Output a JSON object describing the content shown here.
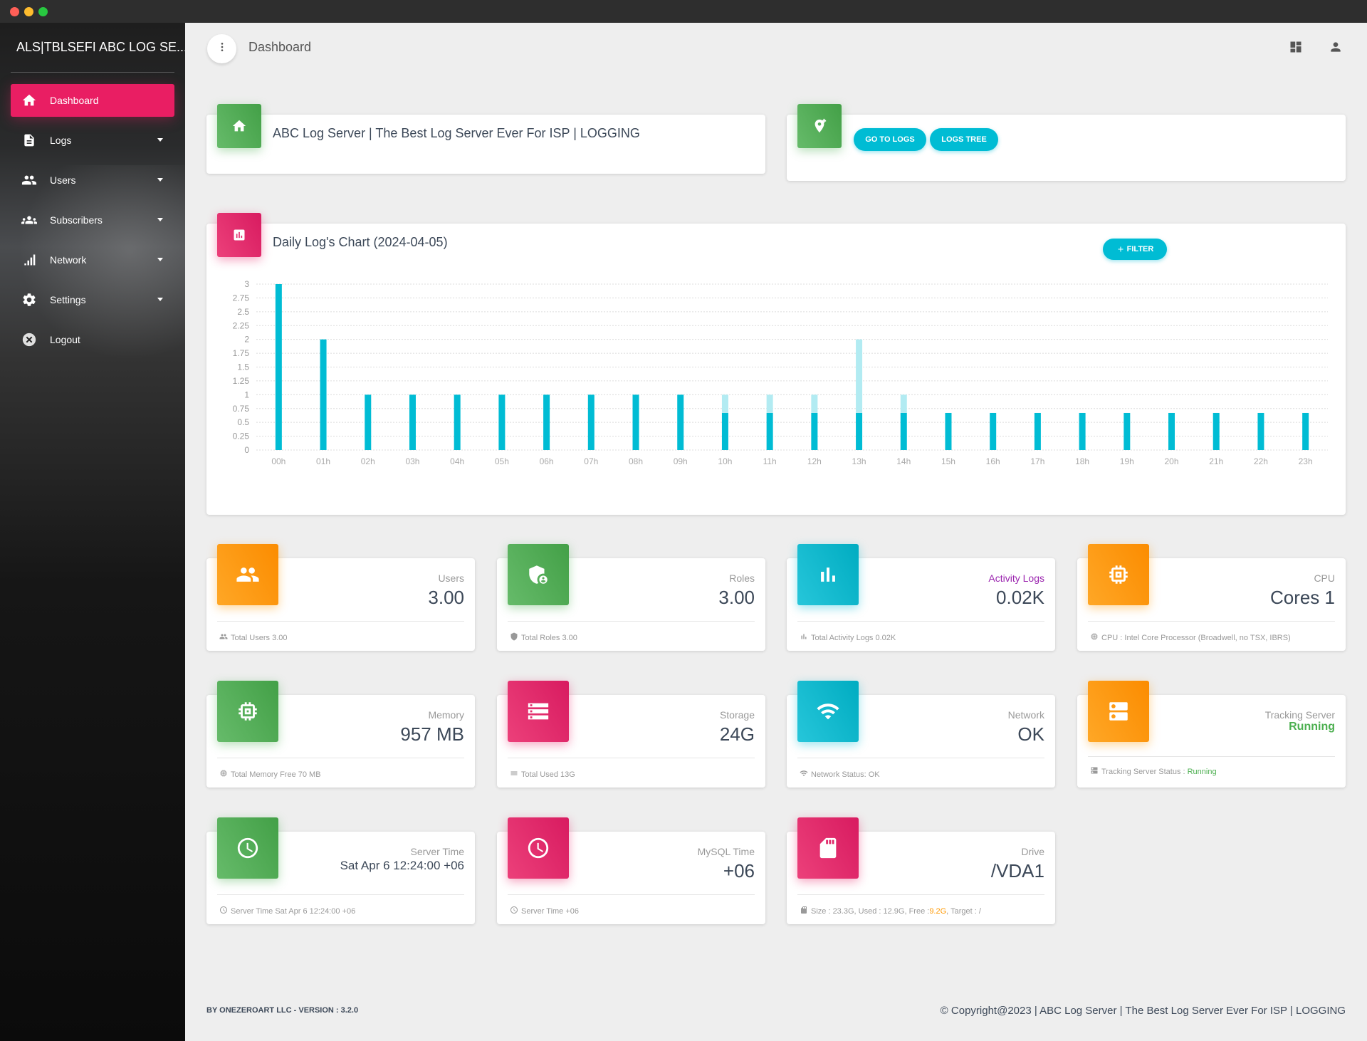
{
  "window": {
    "controls": [
      "close",
      "minimize",
      "maximize"
    ]
  },
  "sidebar": {
    "brand_mini": "ALS|TBLSEFI",
    "brand_full": "ABC LOG SE...",
    "items": [
      {
        "label": "Dashboard",
        "icon": "home-icon",
        "active": true
      },
      {
        "label": "Logs",
        "icon": "document-icon",
        "expandable": true
      },
      {
        "label": "Users",
        "icon": "users-icon",
        "expandable": true
      },
      {
        "label": "Subscribers",
        "icon": "group-icon",
        "expandable": true
      },
      {
        "label": "Network",
        "icon": "signal-icon",
        "expandable": true
      },
      {
        "label": "Settings",
        "icon": "gear-icon",
        "expandable": true
      },
      {
        "label": "Logout",
        "icon": "close-circle-icon"
      }
    ]
  },
  "topbar": {
    "title": "Dashboard",
    "icons": [
      "more-vert-icon",
      "dashboard-grid-icon",
      "person-icon"
    ]
  },
  "header_card": {
    "title": "ABC Log Server | The Best Log Server Ever For ISP | LOGGING",
    "icon": "home-icon"
  },
  "actions_card": {
    "icon": "add-location-icon",
    "buttons": [
      "GO TO LOGS",
      "LOGS TREE"
    ]
  },
  "chart_card": {
    "title": "Daily Log's Chart (2024-04-05)",
    "filter_label": "FILTER",
    "icon": "bar-chart-icon"
  },
  "chart_data": {
    "type": "bar",
    "title": "Daily Log's Chart (2024-04-05)",
    "categories": [
      "00h",
      "01h",
      "02h",
      "03h",
      "04h",
      "05h",
      "06h",
      "07h",
      "08h",
      "09h",
      "10h",
      "11h",
      "12h",
      "13h",
      "14h",
      "15h",
      "16h",
      "17h",
      "18h",
      "19h",
      "20h",
      "21h",
      "22h",
      "23h"
    ],
    "series": [
      {
        "values": [
          3,
          2,
          1,
          1,
          1,
          1,
          1,
          1,
          1,
          1,
          0.67,
          0.67,
          0.67,
          0.67,
          0.67,
          0.67,
          0.67,
          0.67,
          0.67,
          0.67,
          0.67,
          0.67,
          0.67,
          0.67
        ],
        "color": "#00bcd4"
      },
      {
        "values": [
          0,
          0,
          0,
          0,
          0,
          0,
          0,
          0,
          0,
          0,
          0.33,
          0.33,
          0.33,
          1.33,
          0.33,
          0,
          0,
          0,
          0,
          0,
          0,
          0,
          0,
          0
        ],
        "color": "#b2ebf2"
      }
    ],
    "yticks": [
      "0",
      "0.25",
      "0.5",
      "0.75",
      "1",
      "1.25",
      "1.5",
      "1.75",
      "2",
      "2.25",
      "2.5",
      "2.75",
      "3"
    ],
    "ylim": [
      0,
      3
    ],
    "grid": true,
    "stacked": true
  },
  "stats": [
    {
      "category": "Users",
      "value": "3.00",
      "footer": "Total Users 3.00",
      "icon": "users-icon",
      "color": "orange",
      "foot_icon": "group-icon"
    },
    {
      "category": "Roles",
      "value": "3.00",
      "footer": "Total Roles 3.00",
      "icon": "admin-shield-icon",
      "color": "green",
      "foot_icon": "shield-icon"
    },
    {
      "category": "Activity Logs",
      "value": "0.02K",
      "footer": "Total Activity Logs 0.02K",
      "icon": "bar-chart-icon",
      "color": "cyan",
      "foot_icon": "bar-chart-icon",
      "category_color": "#9c27b0"
    },
    {
      "category": "CPU",
      "value": "Cores 1",
      "footer": "CPU : Intel Core Processor (Broadwell, no TSX, IBRS)",
      "icon": "chip-icon",
      "color": "orange",
      "foot_icon": "chip-icon"
    },
    {
      "category": "Memory",
      "value": "957 MB",
      "footer": "Total Memory Free 70 MB",
      "icon": "memory-icon",
      "color": "green",
      "foot_icon": "memory-icon"
    },
    {
      "category": "Storage",
      "value": "24G",
      "footer": "Total Used 13G",
      "icon": "storage-icon",
      "color": "pink",
      "foot_icon": "list-icon"
    },
    {
      "category": "Network",
      "value": "OK",
      "footer": "Network Status: OK",
      "icon": "wifi-icon",
      "color": "cyan",
      "foot_icon": "wifi-icon"
    },
    {
      "category": "Tracking Server",
      "value": "Running",
      "footer_label": "Tracking Server Status :",
      "footer_value": "Running",
      "icon": "server-icon",
      "color": "orange",
      "foot_icon": "server-icon",
      "value_color": "#4caf50"
    },
    {
      "category": "Server Time",
      "value": "Sat Apr 6 12:24:00 +06",
      "footer": "Server Time Sat Apr 6 12:24:00 +06",
      "icon": "clock-icon",
      "color": "green",
      "foot_icon": "clock-icon"
    },
    {
      "category": "MySQL Time",
      "value": "+06",
      "footer": "Server Time +06",
      "icon": "clock-icon",
      "color": "pink",
      "foot_icon": "clock-icon"
    },
    {
      "category": "Drive",
      "value": "/VDA1",
      "footer_a": "Size : 23.3G, Used : 12.9G, Free :",
      "footer_free": "9.2G",
      "footer_b": ", Target : /",
      "icon": "sd-card-icon",
      "color": "pink",
      "foot_icon": "sd-card-icon",
      "free_color": "#ff9800"
    }
  ],
  "footer": {
    "left": "BY ONEZEROART LLC - VERSION : 3.2.0",
    "right": "© Copyright@2023 | ABC Log Server | The Best Log Server Ever For ISP | LOGGING"
  }
}
